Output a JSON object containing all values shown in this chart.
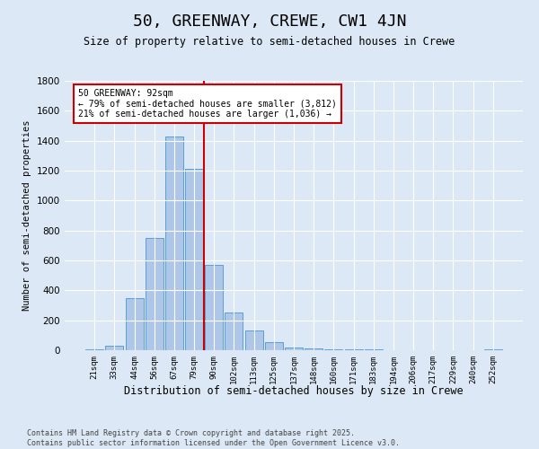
{
  "title": "50, GREENWAY, CREWE, CW1 4JN",
  "subtitle": "Size of property relative to semi-detached houses in Crewe",
  "xlabel": "Distribution of semi-detached houses by size in Crewe",
  "ylabel": "Number of semi-detached properties",
  "categories": [
    "21sqm",
    "33sqm",
    "44sqm",
    "56sqm",
    "67sqm",
    "79sqm",
    "90sqm",
    "102sqm",
    "113sqm",
    "125sqm",
    "137sqm",
    "148sqm",
    "160sqm",
    "171sqm",
    "183sqm",
    "194sqm",
    "206sqm",
    "217sqm",
    "229sqm",
    "240sqm",
    "252sqm"
  ],
  "values": [
    5,
    30,
    350,
    750,
    1430,
    1210,
    570,
    255,
    130,
    55,
    20,
    15,
    8,
    5,
    8,
    3,
    2,
    3,
    1,
    0,
    5
  ],
  "bar_color": "#aec6e8",
  "bar_edge_color": "#5a9fd4",
  "vline_color": "#cc0000",
  "annotation_text": "50 GREENWAY: 92sqm\n← 79% of semi-detached houses are smaller (3,812)\n21% of semi-detached houses are larger (1,036) →",
  "annotation_box_color": "#cc0000",
  "ylim": [
    0,
    1800
  ],
  "background_color": "#dce8f5",
  "plot_bg_color": "#dce8f5",
  "footer_line1": "Contains HM Land Registry data © Crown copyright and database right 2025.",
  "footer_line2": "Contains public sector information licensed under the Open Government Licence v3.0."
}
